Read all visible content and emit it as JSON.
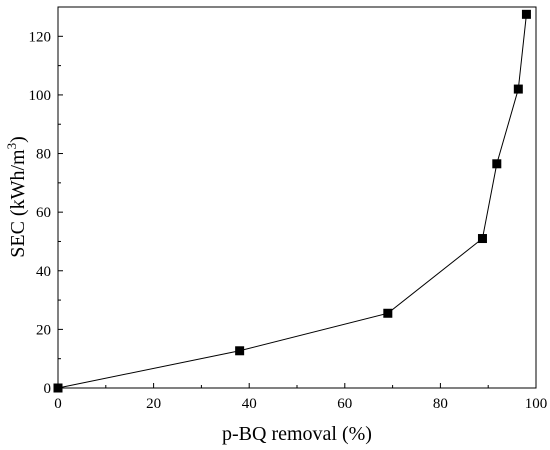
{
  "chart_data": {
    "type": "line",
    "title": "",
    "xlabel": "p-BQ removal (%)",
    "ylabel_main": "SEC (kWh/m",
    "ylabel_sup": "3",
    "ylabel_end": ")",
    "xlim": [
      0,
      100
    ],
    "ylim": [
      0,
      130
    ],
    "x_ticks": [
      0,
      20,
      40,
      60,
      80,
      100
    ],
    "y_ticks": [
      0,
      20,
      40,
      60,
      80,
      100,
      120
    ],
    "grid": false,
    "legend": "none",
    "series": [
      {
        "marker": "square",
        "color": "#000000",
        "points": [
          {
            "x": 0,
            "y": 0
          },
          {
            "x": 38,
            "y": 12.7
          },
          {
            "x": 69,
            "y": 25.5
          },
          {
            "x": 88.8,
            "y": 51
          },
          {
            "x": 91.8,
            "y": 76.5
          },
          {
            "x": 96.3,
            "y": 102
          },
          {
            "x": 98,
            "y": 127.5
          }
        ]
      }
    ]
  }
}
